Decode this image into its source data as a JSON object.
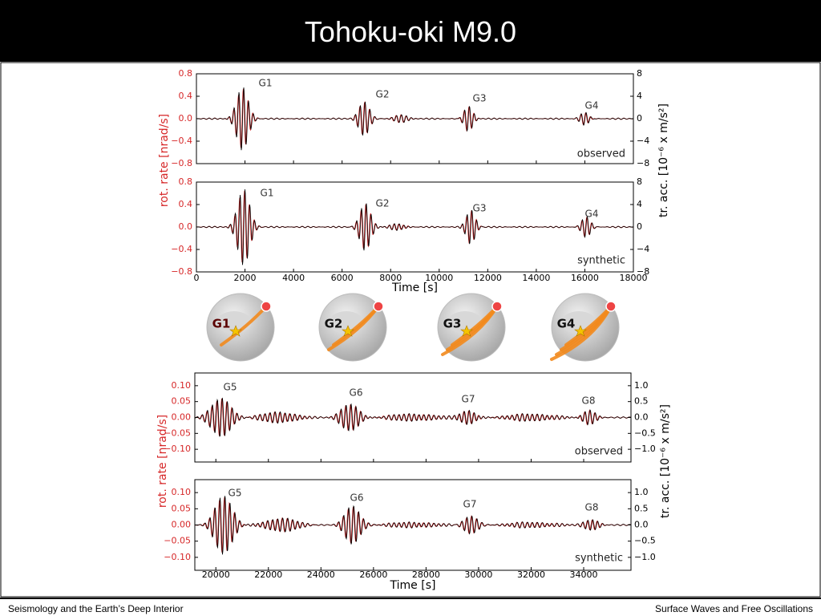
{
  "header": {
    "title": "Tohoku-oki M9.0"
  },
  "footer": {
    "left": "Seismology and the Earth’s Deep Interior",
    "right": "Surface Waves and Free Oscillations"
  },
  "figure_top": {
    "y_label": "rot. rate [nrad/s]",
    "y2_label": "tr. acc. [10⁻⁶ x m/s²]",
    "x_label": "Time [s]",
    "xlim": [
      0,
      18000
    ],
    "xticks": [
      0,
      2000,
      4000,
      6000,
      8000,
      10000,
      12000,
      14000,
      16000,
      18000
    ],
    "ylim": [
      -0.8,
      0.8
    ],
    "yticks": [
      {
        "value": -0.8,
        "label": "−0.8"
      },
      {
        "value": -0.4,
        "label": "−0.4"
      },
      {
        "value": 0,
        "label": "0.0"
      },
      0.4,
      0.8
    ],
    "y2lim": [
      -8,
      8
    ],
    "y2ticks": [
      {
        "value": -8,
        "label": "−8"
      },
      {
        "value": -4,
        "label": "−4"
      },
      0,
      4,
      8
    ],
    "panels": [
      {
        "label": "observed",
        "annotations": [
          "G1",
          "G2",
          "G3",
          "G4"
        ]
      },
      {
        "label": "synthetic",
        "annotations": [
          "G1",
          "G2",
          "G3",
          "G4"
        ]
      }
    ]
  },
  "globes": [
    "G1",
    "G2",
    "G3",
    "G4"
  ],
  "figure_bottom": {
    "y_label": "rot. rate [nrad/s]",
    "y2_label": "tr. acc. [10⁻⁶ x m/s²]",
    "x_label": "Time [s]",
    "xlim": [
      19200,
      35800
    ],
    "xticks": [
      20000,
      22000,
      24000,
      26000,
      28000,
      30000,
      32000,
      34000
    ],
    "ylim": [
      -0.14,
      0.14
    ],
    "yticks": [
      {
        "value": -0.1,
        "label": "−0.10"
      },
      {
        "value": -0.05,
        "label": "−0.05"
      },
      {
        "value": 0,
        "label": "0.00"
      },
      {
        "value": 0.05,
        "label": "0.05"
      },
      {
        "value": 0.1,
        "label": "0.10"
      }
    ],
    "y2lim": [
      -1.4,
      1.4
    ],
    "y2ticks": [
      {
        "value": -1,
        "label": "−1.0"
      },
      {
        "value": -0.5,
        "label": "−0.5"
      },
      {
        "value": 0,
        "label": "0.0"
      },
      0.5,
      {
        "value": 1,
        "label": "1.0"
      }
    ],
    "panels": [
      {
        "label": "observed",
        "annotations": [
          "G5",
          "G6",
          "G7",
          "G8"
        ]
      },
      {
        "label": "synthetic",
        "annotations": [
          "G5",
          "G6",
          "G7",
          "G8"
        ]
      }
    ]
  }
}
